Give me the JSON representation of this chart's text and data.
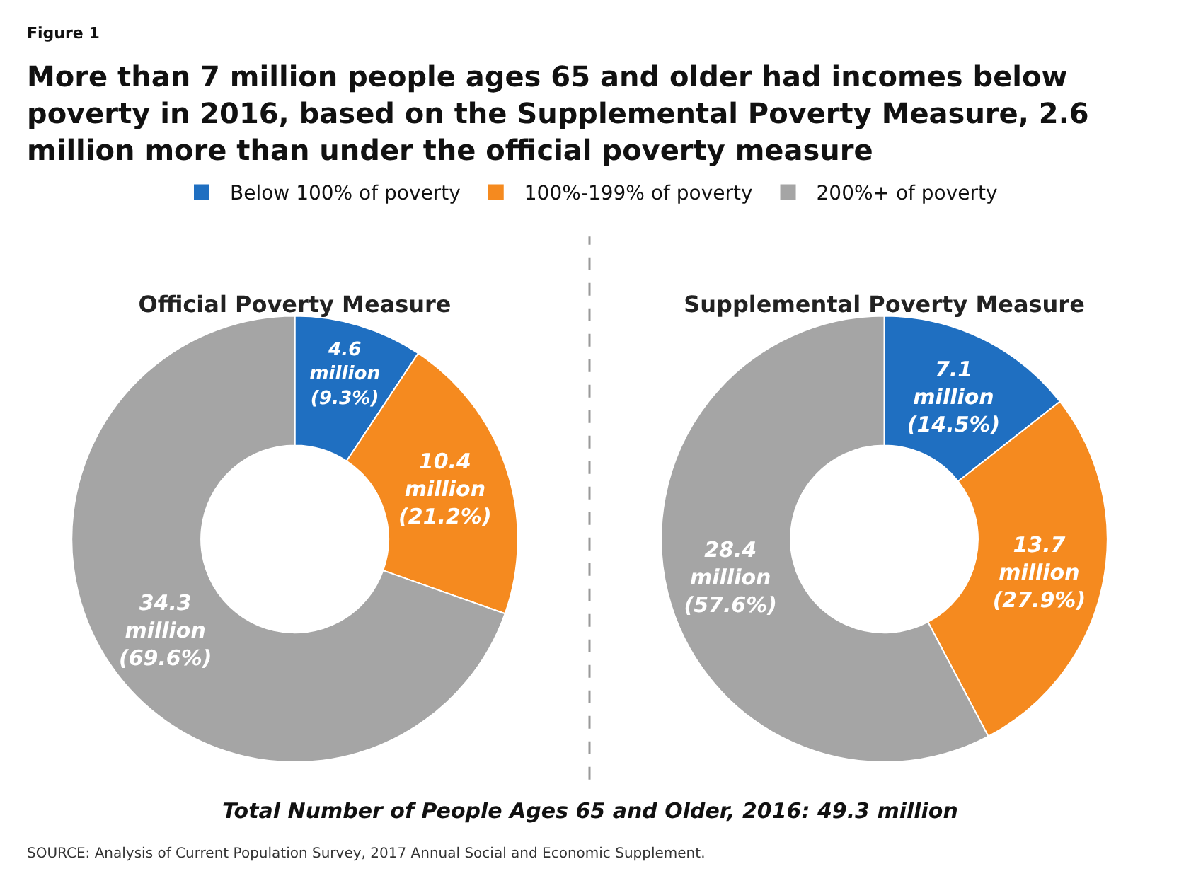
{
  "chart_data": [
    {
      "type": "donut",
      "title": "Official Poverty Measure",
      "categories": [
        "Below 100% of poverty",
        "100%-199% of poverty",
        "200%+ of poverty"
      ],
      "values": [
        4.6,
        10.4,
        34.3
      ],
      "colors": [
        "#1f6fc1",
        "#f58a1f",
        "#a5a5a5"
      ],
      "value_labels": [
        "4.6\nmillion\n(9.3%)",
        "10.4\nmillion\n(21.2%)",
        "34.3\nmillion\n(69.6%)"
      ],
      "legend": "top",
      "annotations": [
        "Figure 1",
        "More than 7 million people ages 65 and older had incomes below\npoverty in 2016, based on the Supplemental Poverty Measure, 2.6\nmillion more than under the official poverty measure"
      ]
    },
    {
      "type": "donut",
      "title": "Supplemental Poverty Measure",
      "categories": [
        null,
        null,
        null
      ],
      "values": [
        7.1,
        13.7,
        28.4
      ],
      "colors": [
        "#1f6fc1",
        "#f58a1f",
        "#a5a5a5"
      ],
      "value_labels": [
        "7.1\nmillion\n(14.5%)",
        "13.7\nmillion\n(27.9%)",
        "28.4\nmillion\n(57.6%)"
      ],
      "annotations": [
        "Total Number of People Ages 65 and Older, 2016: 49.3 million",
        "SOURCE: Analysis of Current Population Survey, 2017 Annual Social and Economic Supplement."
      ]
    }
  ]
}
